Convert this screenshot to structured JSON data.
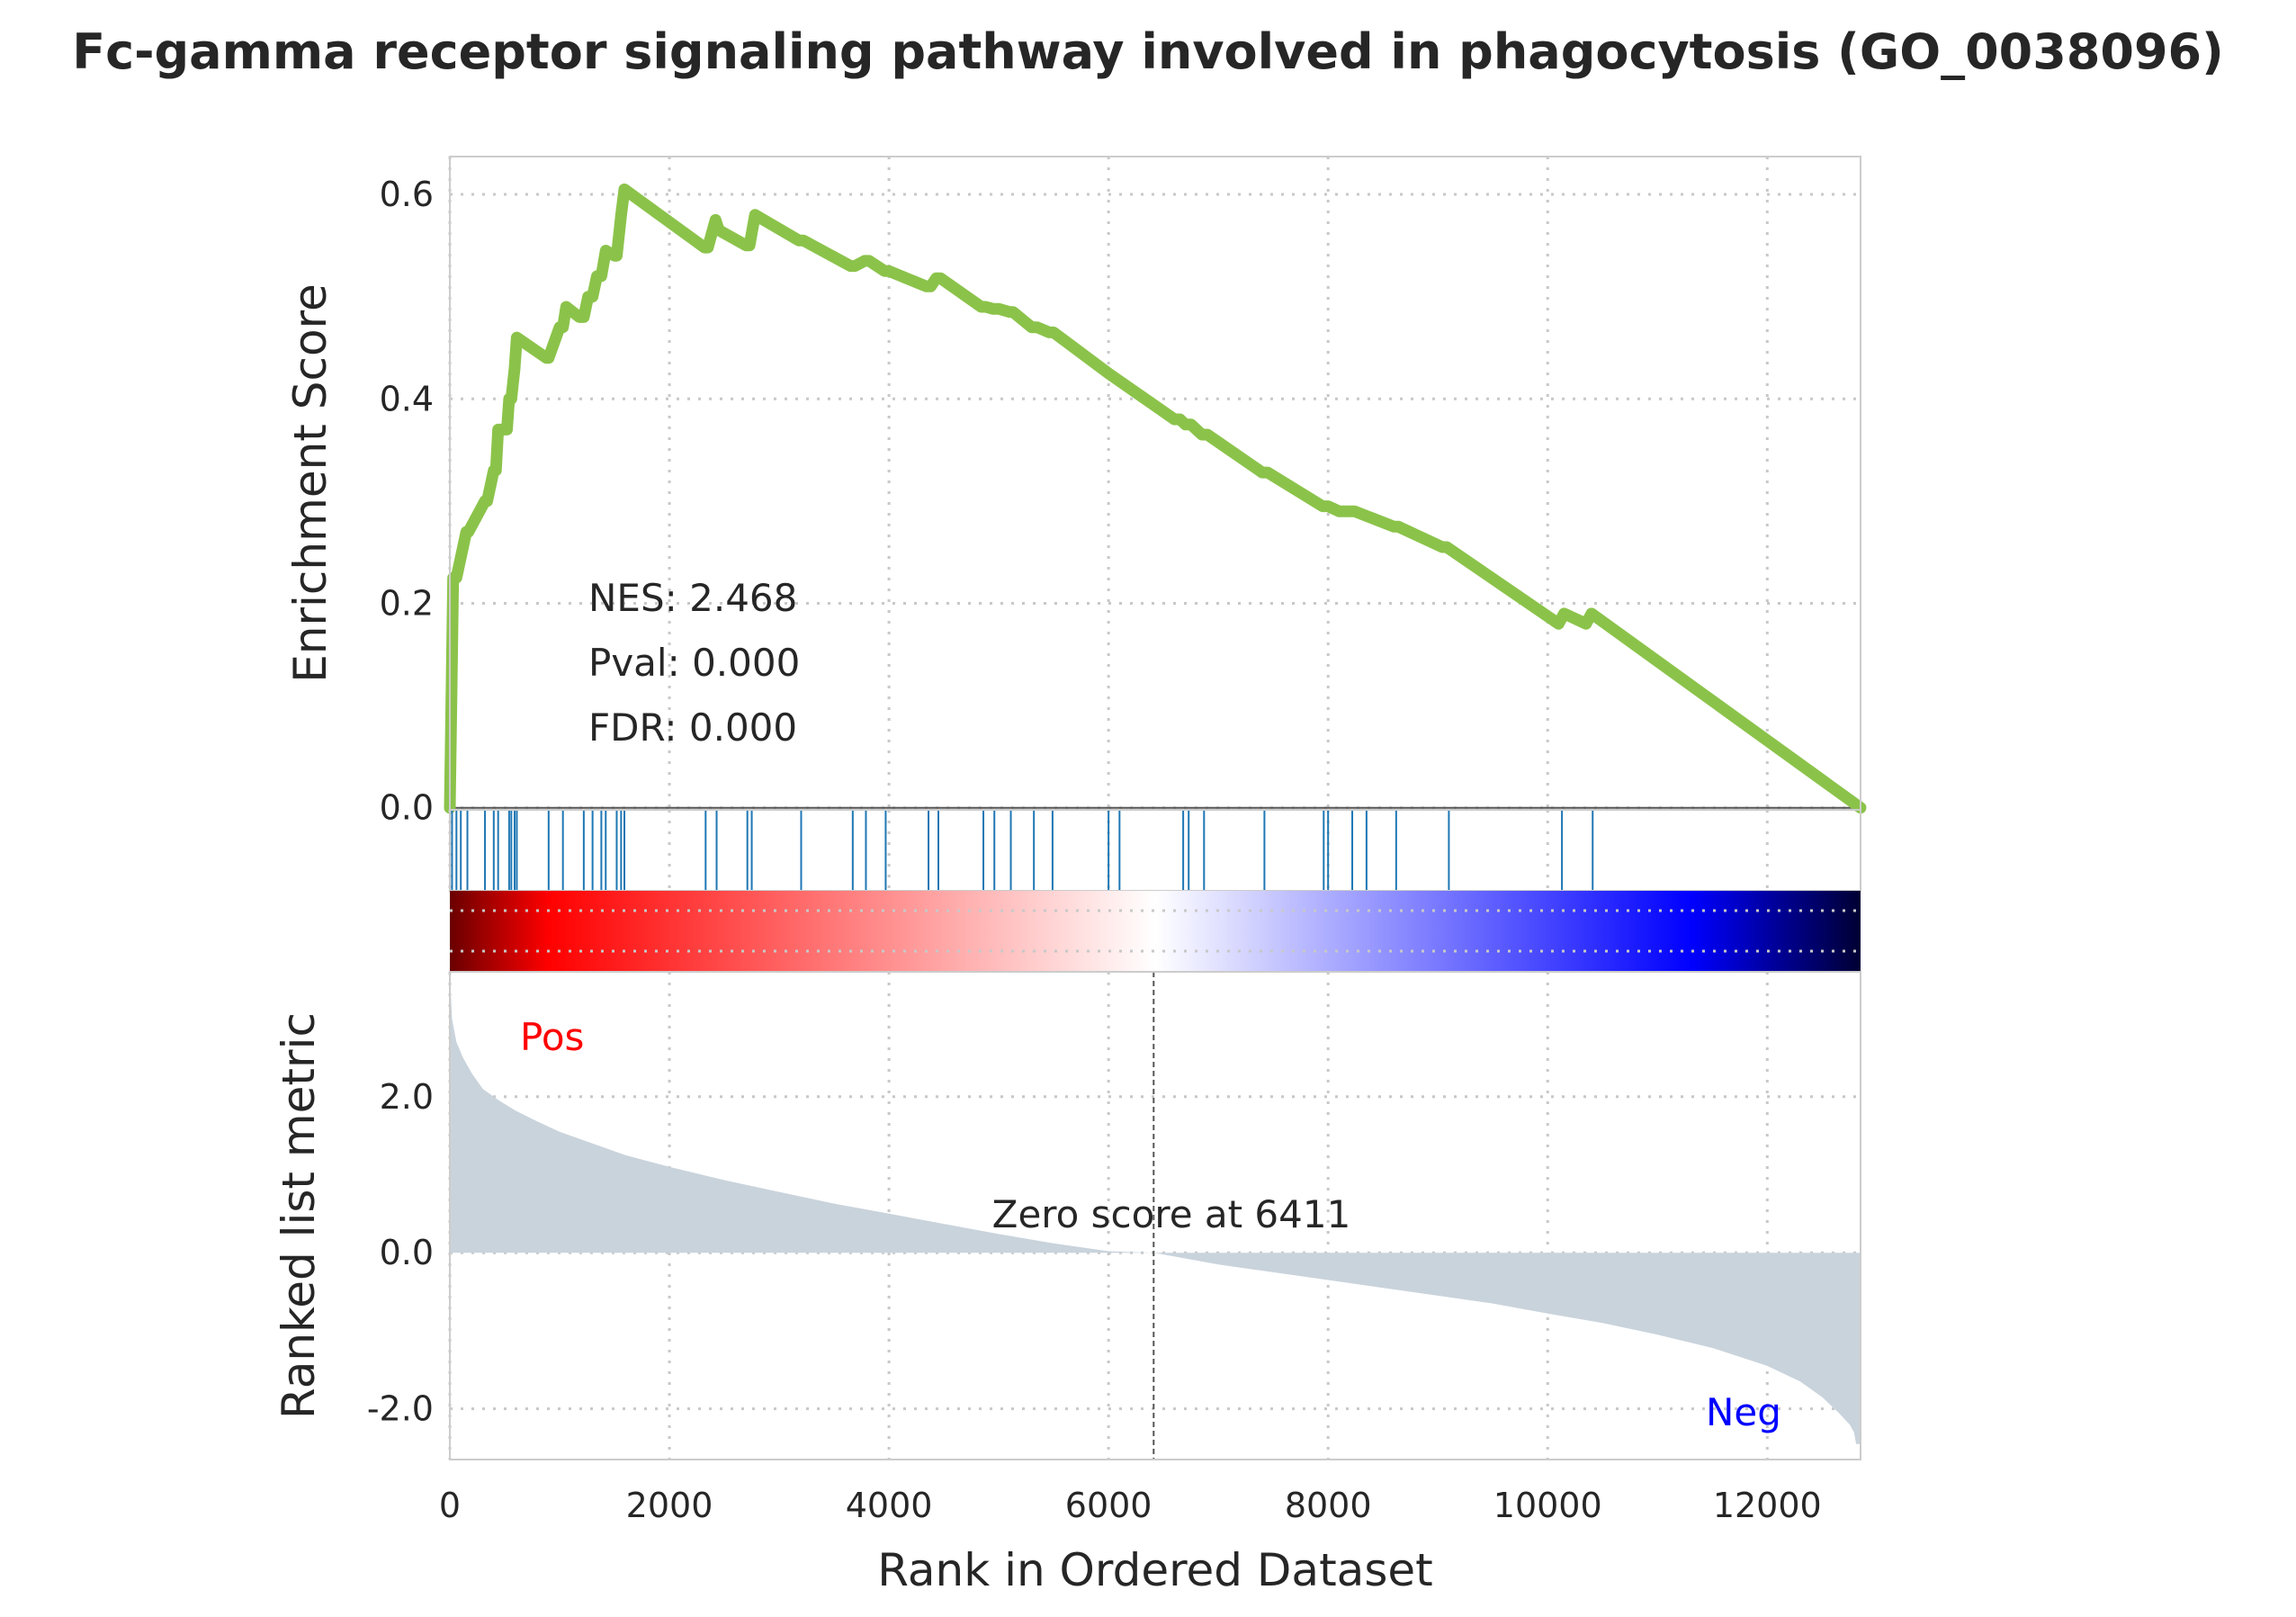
{
  "chart_data": {
    "type": "line",
    "title": "Fc-gamma receptor signaling pathway involved in phagocytosis (GO_0038096)",
    "xlabel": "Rank in Ordered Dataset",
    "x_ticks": [
      "0",
      "2000",
      "4000",
      "6000",
      "8000",
      "10000",
      "12000"
    ],
    "xlim": [
      0,
      12850
    ],
    "grid": true,
    "enrichment": {
      "ylabel": "Enrichment Score",
      "ylim": [
        -0.002,
        0.637
      ],
      "y_ticks": [
        "0.0",
        "0.2",
        "0.4",
        "0.6"
      ],
      "line_color": "#8bc34a",
      "x": [
        0,
        30,
        60,
        150,
        170,
        320,
        340,
        400,
        420,
        440,
        520,
        540,
        560,
        590,
        610,
        880,
        900,
        1000,
        1030,
        1060,
        1180,
        1220,
        1260,
        1300,
        1340,
        1380,
        1420,
        1500,
        1520,
        1560,
        1590,
        2320,
        2350,
        2420,
        2450,
        2700,
        2730,
        2780,
        3180,
        3220,
        3650,
        3690,
        3780,
        3820,
        3960,
        4000,
        4340,
        4380,
        4430,
        4470,
        4840,
        4880,
        4950,
        5000,
        5100,
        5130,
        5300,
        5350,
        5460,
        5500,
        6000,
        6600,
        6650,
        6700,
        6750,
        6850,
        6900,
        7400,
        7450,
        7950,
        8000,
        8100,
        8140,
        8200,
        8240,
        8600,
        8640,
        9040,
        9080,
        10100,
        10150,
        10350,
        10400,
        12850
      ],
      "y": [
        0.0,
        0.225,
        0.225,
        0.27,
        0.27,
        0.3,
        0.3,
        0.33,
        0.33,
        0.37,
        0.37,
        0.4,
        0.4,
        0.43,
        0.46,
        0.44,
        0.44,
        0.47,
        0.47,
        0.49,
        0.48,
        0.48,
        0.5,
        0.5,
        0.52,
        0.52,
        0.545,
        0.54,
        0.54,
        0.58,
        0.605,
        0.548,
        0.548,
        0.575,
        0.565,
        0.55,
        0.55,
        0.58,
        0.555,
        0.555,
        0.53,
        0.53,
        0.535,
        0.535,
        0.525,
        0.525,
        0.51,
        0.51,
        0.518,
        0.518,
        0.49,
        0.49,
        0.488,
        0.488,
        0.485,
        0.485,
        0.47,
        0.47,
        0.465,
        0.465,
        0.425,
        0.38,
        0.38,
        0.375,
        0.375,
        0.365,
        0.365,
        0.328,
        0.328,
        0.295,
        0.295,
        0.29,
        0.29,
        0.29,
        0.29,
        0.275,
        0.275,
        0.255,
        0.255,
        0.18,
        0.19,
        0.18,
        0.19,
        0.0
      ],
      "annotations": [
        "NES: 2.468",
        "Pval: 0.000",
        "FDR: 0.000"
      ]
    },
    "hits": {
      "color": "#1f77b4",
      "positions": [
        20,
        60,
        100,
        160,
        320,
        400,
        440,
        540,
        560,
        590,
        610,
        900,
        1030,
        1220,
        1300,
        1380,
        1420,
        1520,
        1560,
        1590,
        2330,
        2430,
        2710,
        2750,
        3200,
        3670,
        3790,
        3970,
        4360,
        4450,
        4860,
        4960,
        5110,
        5320,
        5490,
        6000,
        6100,
        6680,
        6730,
        6870,
        7420,
        7960,
        8000,
        8220,
        8350,
        8620,
        9100,
        10130,
        10410
      ]
    },
    "heatmap": {
      "colors": [
        "#6a0000",
        "#ff0000",
        "#ffffff",
        "#0000ff",
        "#000033"
      ]
    },
    "ranked_metric": {
      "ylabel": "Ranked list metric",
      "ylim": [
        -2.65,
        3.6
      ],
      "y_ticks": [
        "2.0",
        "0.0",
        "-2.0"
      ],
      "fill_color": "#c9d3dc",
      "x": [
        0,
        20,
        60,
        120,
        200,
        300,
        450,
        600,
        800,
        1000,
        1300,
        1600,
        2000,
        2500,
        3000,
        3500,
        4000,
        4500,
        5000,
        5500,
        6000,
        6411,
        7000,
        7500,
        8000,
        8500,
        9000,
        9500,
        10000,
        10500,
        11000,
        11500,
        12000,
        12300,
        12500,
        12650,
        12750,
        12790,
        12810,
        12850
      ],
      "y": [
        3.6,
        3.0,
        2.7,
        2.5,
        2.3,
        2.1,
        1.95,
        1.82,
        1.68,
        1.55,
        1.4,
        1.25,
        1.1,
        0.93,
        0.78,
        0.63,
        0.5,
        0.37,
        0.24,
        0.12,
        0.02,
        0.0,
        -0.15,
        -0.25,
        -0.35,
        -0.45,
        -0.55,
        -0.65,
        -0.78,
        -0.9,
        -1.05,
        -1.22,
        -1.45,
        -1.65,
        -1.85,
        -2.05,
        -2.2,
        -2.3,
        -2.45,
        -2.45
      ],
      "pos_label": "Pos",
      "neg_label": "Neg",
      "pos_color": "#ff0000",
      "neg_color": "#0000ff",
      "zero_rank": 6411,
      "zero_label": "Zero score at 6411"
    }
  }
}
